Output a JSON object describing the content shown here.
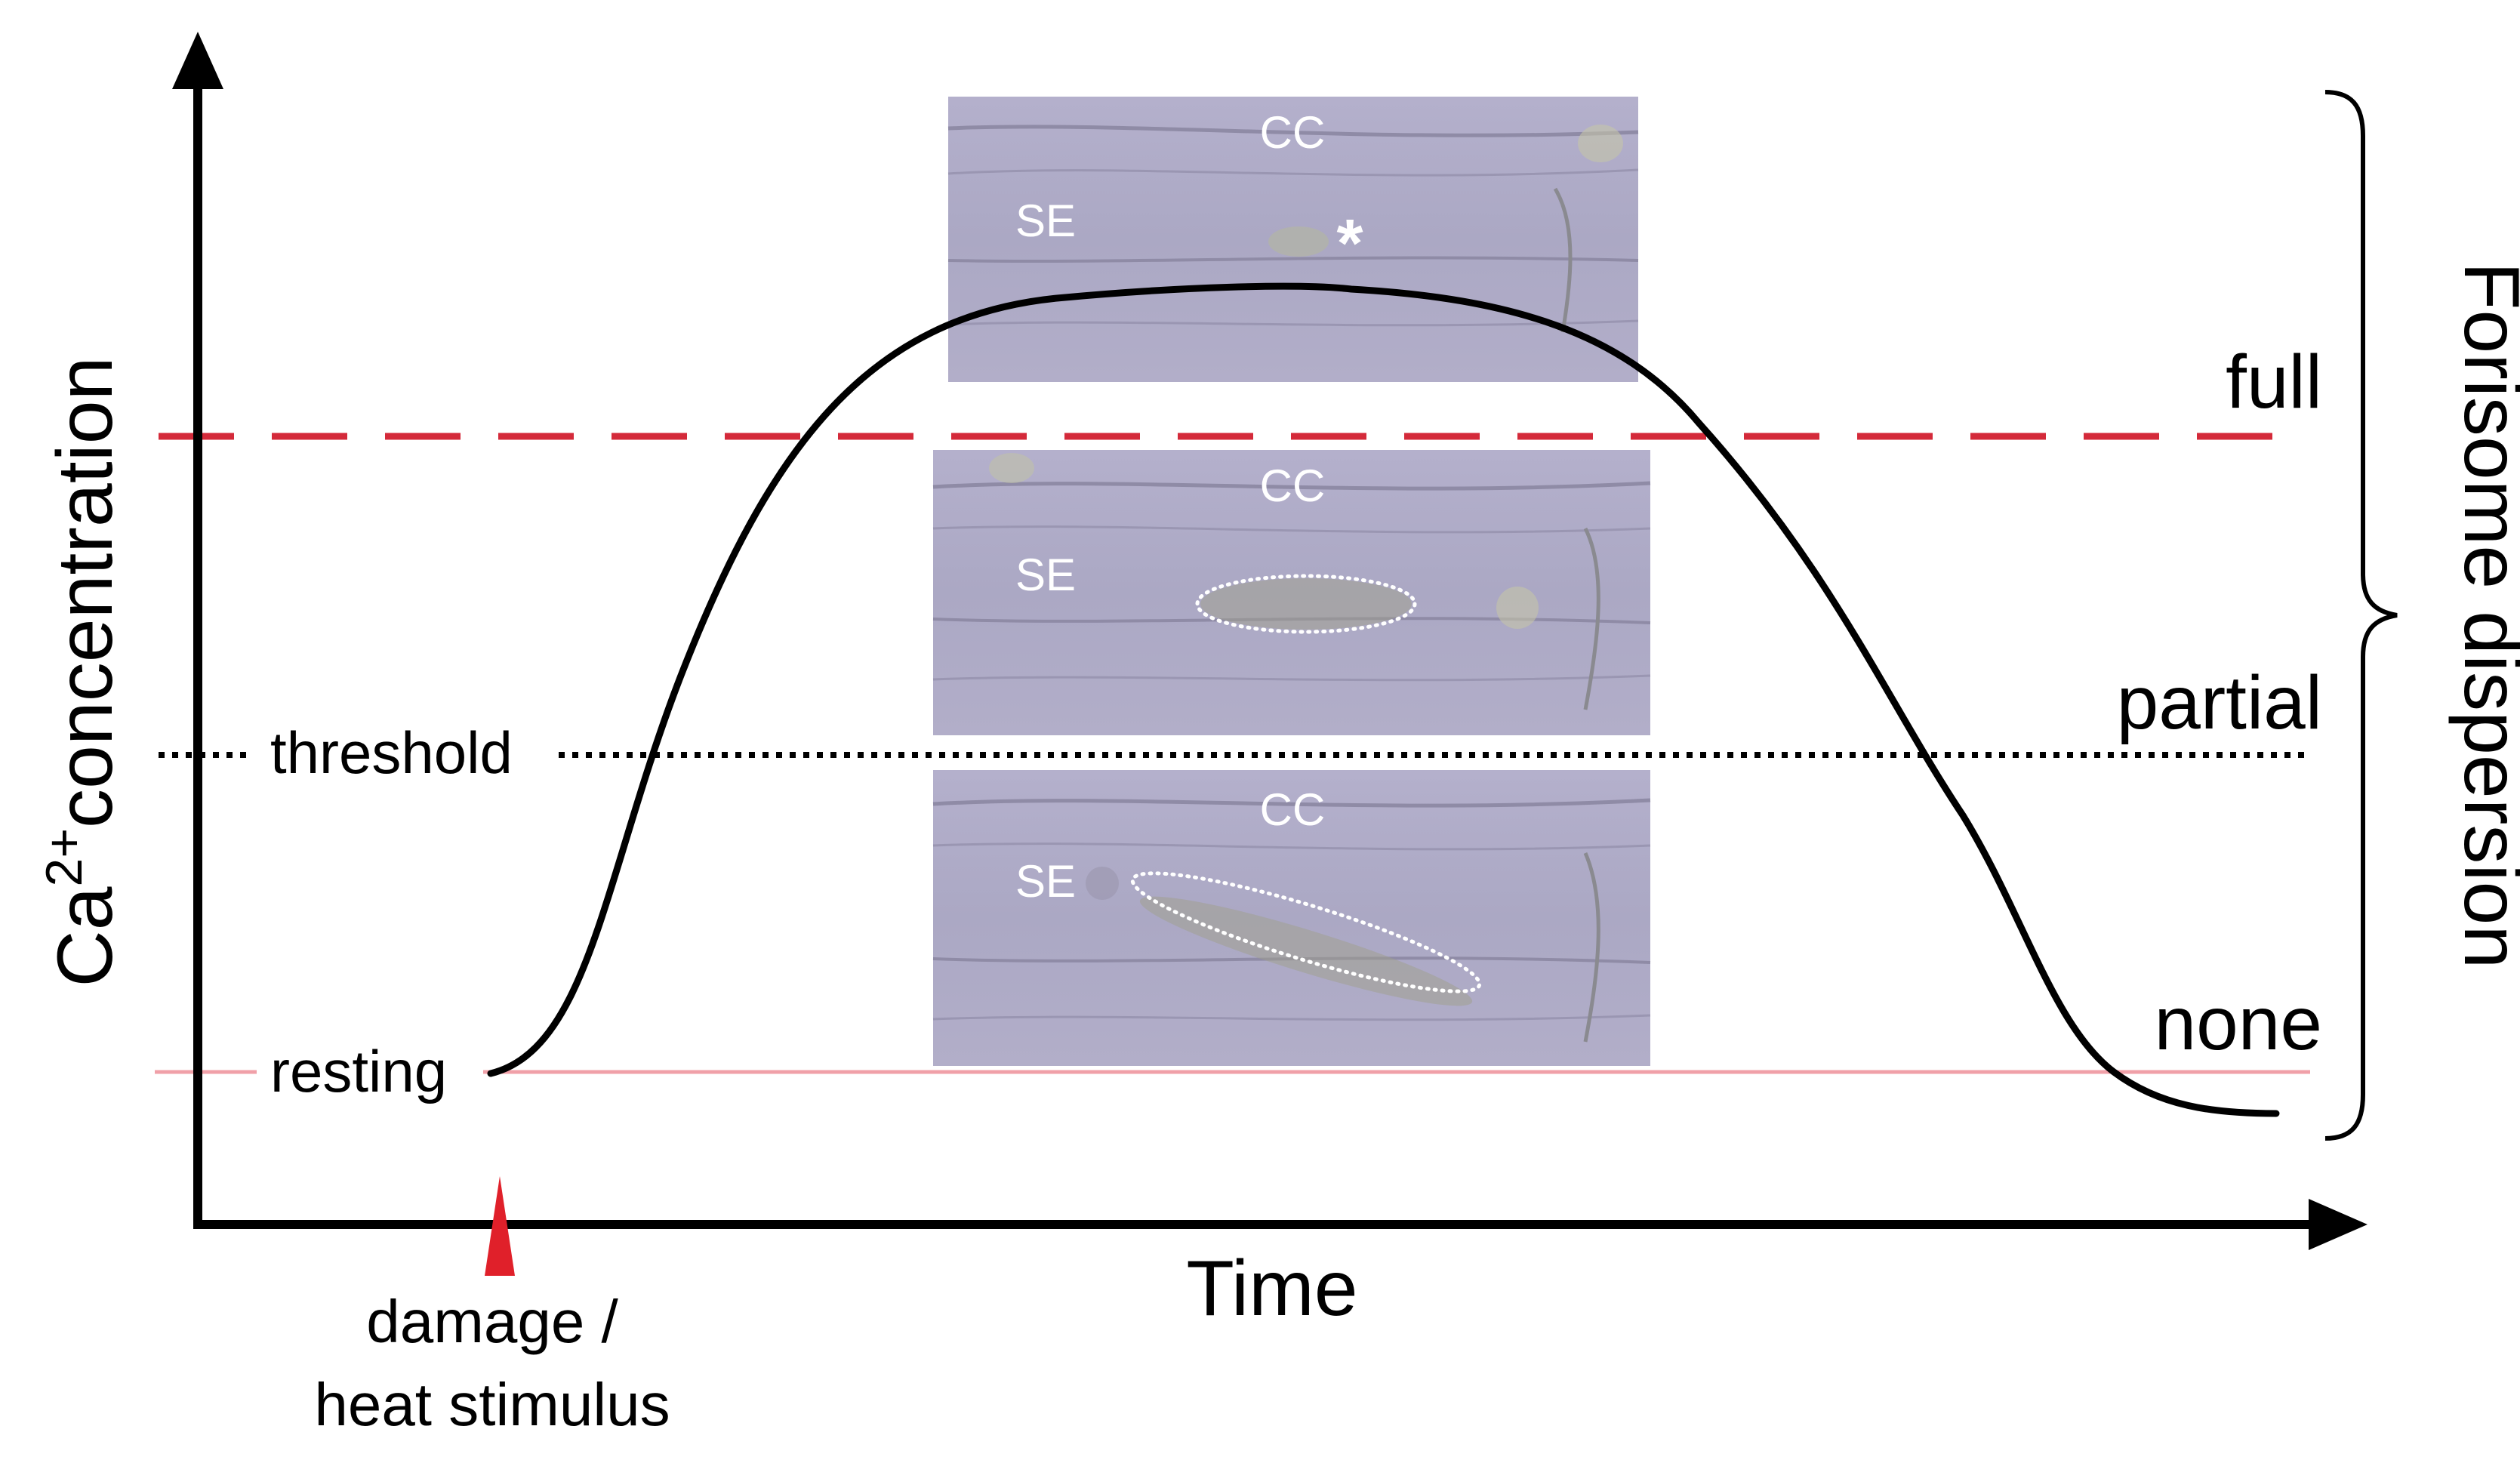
{
  "axes": {
    "y_label_main": "Ca",
    "y_label_sup": "2+",
    "y_label_rest": "concentration",
    "x_label": "Time"
  },
  "levels": {
    "threshold": "threshold",
    "resting": "resting"
  },
  "dispersion": {
    "title": "Forisome dispersion",
    "full": "full",
    "partial": "partial",
    "none": "none"
  },
  "stimulus": {
    "line1": "damage /",
    "line2": "heat stimulus",
    "marker_color": "#e0202a"
  },
  "micrographs": [
    {
      "cc": "CC",
      "se": "SE",
      "mark": "*"
    },
    {
      "cc": "CC",
      "se": "SE"
    },
    {
      "cc": "CC",
      "se": "SE"
    }
  ],
  "colors": {
    "full_line": "#d42a3a",
    "resting_line": "#f0a0a8",
    "threshold_line": "#000000",
    "curve": "#000000"
  }
}
